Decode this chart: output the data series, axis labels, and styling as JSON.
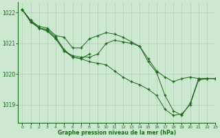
{
  "background_color": "#cde8d0",
  "grid_color": "#b0cfb0",
  "line_color": "#1a6b1a",
  "xlabel": "Graphe pression niveau de la mer (hPa)",
  "xlim": [
    -0.5,
    23
  ],
  "ylim": [
    1018.4,
    1022.35
  ],
  "yticks": [
    1019,
    1020,
    1021,
    1022
  ],
  "xticks": [
    0,
    1,
    2,
    3,
    4,
    5,
    6,
    7,
    8,
    9,
    10,
    11,
    12,
    13,
    14,
    15,
    16,
    17,
    18,
    19,
    20,
    21,
    22,
    23
  ],
  "s1_x": [
    0,
    1,
    2,
    3,
    4,
    5,
    6,
    7,
    8,
    9,
    10,
    11,
    12,
    13,
    14,
    15,
    16,
    17,
    18,
    19,
    20,
    21,
    22
  ],
  "s1_y": [
    1022.1,
    1021.75,
    1021.55,
    1021.5,
    1021.25,
    1021.2,
    1020.85,
    1020.85,
    1021.15,
    1021.25,
    1021.35,
    1021.3,
    1021.2,
    1021.05,
    1020.9,
    1020.5,
    1020.1,
    1019.9,
    1019.75,
    1019.85,
    1019.9,
    1019.85,
    1019.85
  ],
  "s2_x": [
    0,
    1,
    2,
    3,
    4,
    5,
    6,
    7,
    8
  ],
  "s2_y": [
    1022.1,
    1021.75,
    1021.5,
    1021.45,
    1021.2,
    1020.8,
    1020.55,
    1020.5,
    1020.65
  ],
  "s3_x": [
    0,
    1,
    2,
    3,
    4,
    5,
    6,
    7,
    8,
    9,
    10,
    11,
    12,
    13,
    14,
    15,
    16,
    17,
    18,
    19,
    20,
    21,
    22,
    23
  ],
  "s3_y": [
    1022.1,
    1021.7,
    1021.5,
    1021.4,
    1021.15,
    1020.75,
    1020.6,
    1020.55,
    1020.55,
    1020.65,
    1021.0,
    1021.1,
    1021.05,
    1021.0,
    1020.9,
    1020.4,
    1020.05,
    1019.3,
    1018.8,
    1018.65,
    1019.05,
    1019.85,
    1019.85,
    1019.85
  ],
  "s4_x": [
    0,
    1,
    2,
    3,
    4,
    5,
    6,
    7,
    8,
    9,
    10,
    11,
    12,
    13,
    14,
    15,
    16,
    17,
    18,
    19,
    20,
    21,
    22,
    23
  ],
  "s4_y": [
    1022.1,
    1021.7,
    1021.5,
    1021.4,
    1021.15,
    1020.75,
    1020.55,
    1020.5,
    1020.4,
    1020.35,
    1020.3,
    1020.1,
    1019.9,
    1019.75,
    1019.65,
    1019.5,
    1019.3,
    1018.85,
    1018.65,
    1018.7,
    1019.0,
    1019.8,
    1019.85,
    1019.85
  ]
}
